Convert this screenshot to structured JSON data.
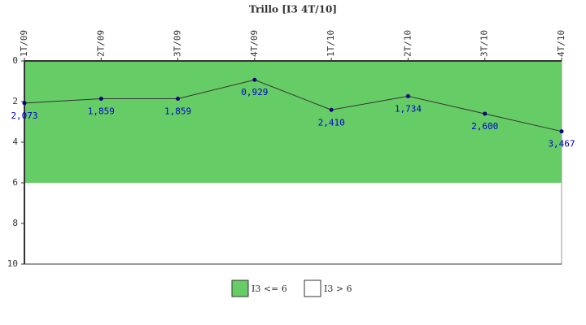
{
  "chart_data": {
    "type": "line",
    "title": "Trillo [I3 4T/10]",
    "categories": [
      "1T/09",
      "2T/09",
      "3T/09",
      "4T/09",
      "1T/10",
      "2T/10",
      "3T/10",
      "4T/10"
    ],
    "series": [
      {
        "name": "Trillo",
        "color": "#333333",
        "marker_color": "#000080",
        "label_color": "#0000cc",
        "values": [
          2.073,
          1.859,
          1.859,
          0.929,
          2.41,
          1.734,
          2.6,
          3.467
        ],
        "value_labels": [
          "2,073",
          "1,859",
          "1,859",
          "0,929",
          "2,410",
          "1,734",
          "2,600",
          "3,467"
        ]
      }
    ],
    "bands": [
      {
        "name": "I3 <= 6",
        "color": "#66cc66",
        "from": 0,
        "to": 6
      },
      {
        "name": "I3 > 6",
        "color": "#ffffff",
        "from": 6,
        "to": 10
      }
    ],
    "ylim": [
      0,
      10
    ],
    "y_inverted": true,
    "yticks": [
      0,
      2,
      4,
      6,
      8,
      10
    ],
    "grid": false
  }
}
